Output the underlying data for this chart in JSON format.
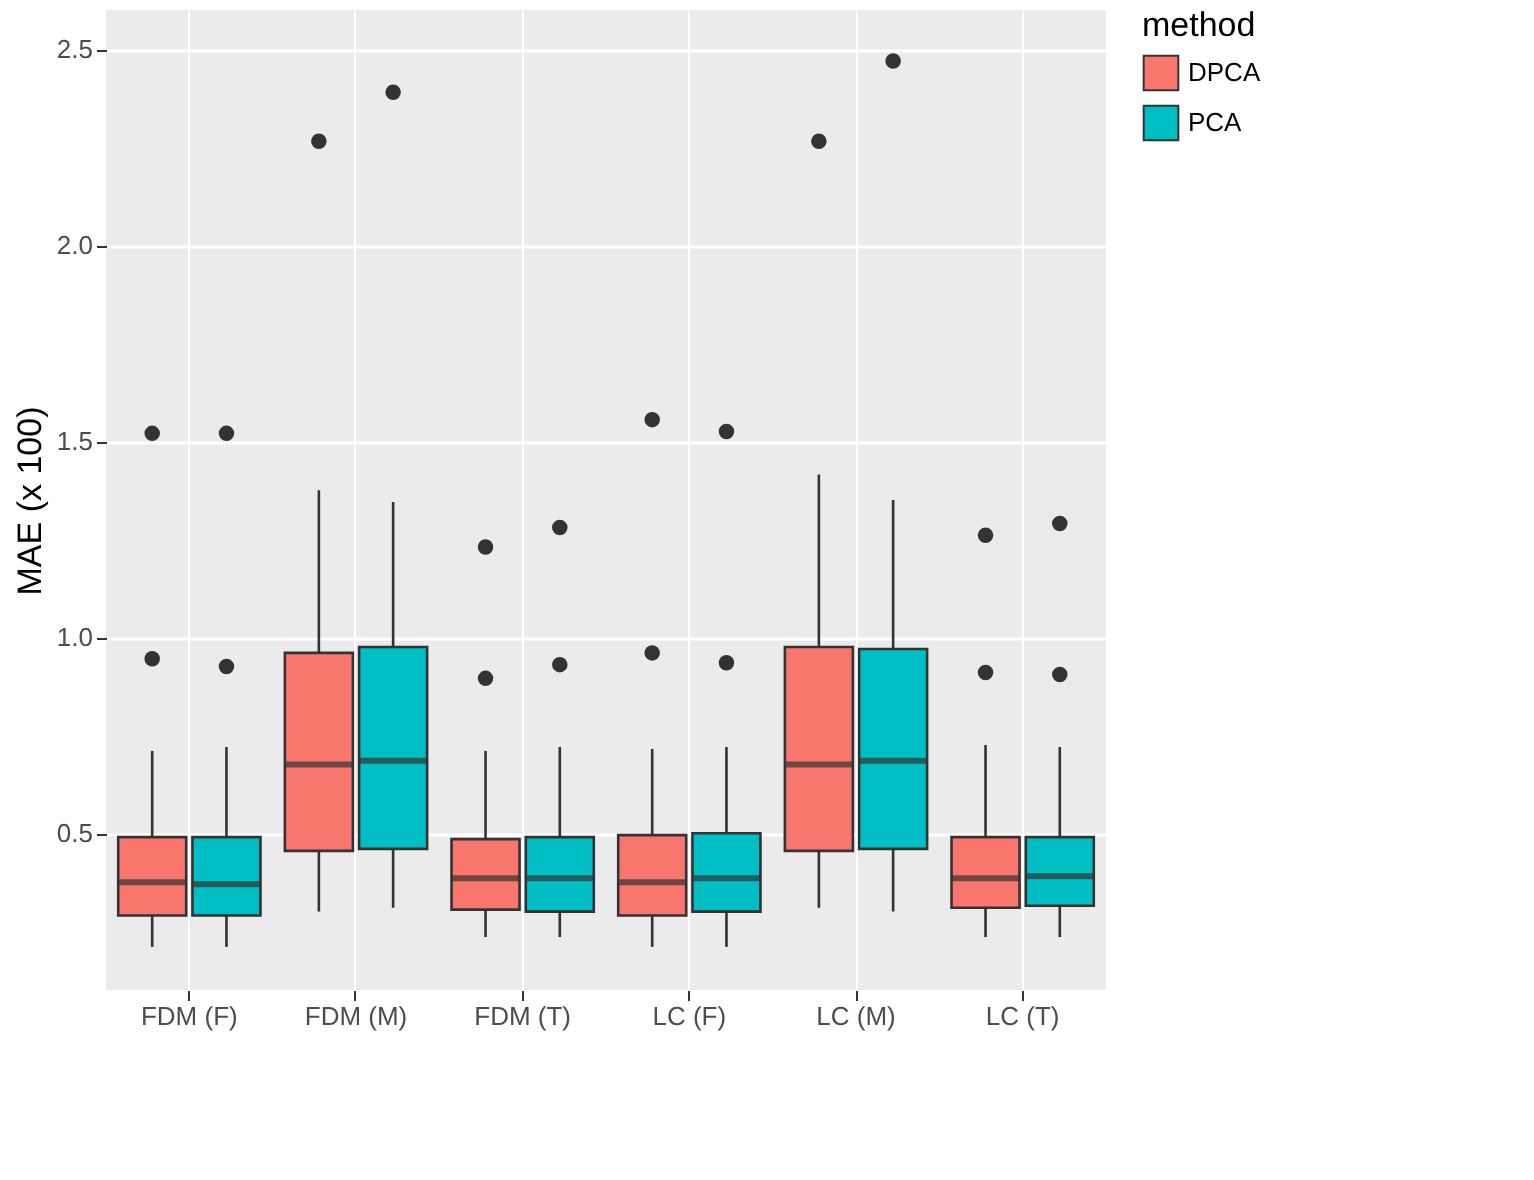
{
  "chart_data": {
    "type": "box",
    "ylabel": "MAE (x 100)",
    "legend_title": "method",
    "legend": "right",
    "grid": true,
    "categories": [
      "FDM (F)",
      "FDM (M)",
      "FDM (T)",
      "LC (F)",
      "LC (M)",
      "LC (T)"
    ],
    "ylim": [
      0.1,
      2.6
    ],
    "yticks": [
      {
        "value": 0.5,
        "label": "0.5"
      },
      {
        "value": 1.0,
        "label": "1.0"
      },
      {
        "value": 1.5,
        "label": "1.5"
      },
      {
        "value": 2.0,
        "label": "2.0"
      },
      {
        "value": 2.5,
        "label": "2.5"
      }
    ],
    "series": [
      {
        "name": "DPCA",
        "color": "#f8766d",
        "boxes": [
          {
            "low": 0.21,
            "q1": 0.29,
            "median": 0.375,
            "q3": 0.49,
            "high": 0.71,
            "outliers": [
              0.945,
              1.52
            ]
          },
          {
            "low": 0.3,
            "q1": 0.455,
            "median": 0.675,
            "q3": 0.96,
            "high": 1.375,
            "outliers": [
              2.265
            ]
          },
          {
            "low": 0.235,
            "q1": 0.305,
            "median": 0.385,
            "q3": 0.485,
            "high": 0.71,
            "outliers": [
              0.895,
              1.23
            ]
          },
          {
            "low": 0.21,
            "q1": 0.29,
            "median": 0.375,
            "q3": 0.495,
            "high": 0.715,
            "outliers": [
              0.96,
              1.555
            ]
          },
          {
            "low": 0.31,
            "q1": 0.455,
            "median": 0.675,
            "q3": 0.975,
            "high": 1.415,
            "outliers": [
              2.265
            ]
          },
          {
            "low": 0.235,
            "q1": 0.31,
            "median": 0.385,
            "q3": 0.49,
            "high": 0.725,
            "outliers": [
              0.91,
              1.26
            ]
          }
        ]
      },
      {
        "name": "PCA",
        "color": "#00bfc4",
        "boxes": [
          {
            "low": 0.21,
            "q1": 0.29,
            "median": 0.37,
            "q3": 0.49,
            "high": 0.72,
            "outliers": [
              0.925,
              1.52
            ]
          },
          {
            "low": 0.31,
            "q1": 0.46,
            "median": 0.685,
            "q3": 0.975,
            "high": 1.345,
            "outliers": [
              2.39
            ]
          },
          {
            "low": 0.235,
            "q1": 0.3,
            "median": 0.385,
            "q3": 0.49,
            "high": 0.72,
            "outliers": [
              0.93,
              1.28
            ]
          },
          {
            "low": 0.21,
            "q1": 0.3,
            "median": 0.385,
            "q3": 0.5,
            "high": 0.72,
            "outliers": [
              0.935,
              1.525
            ]
          },
          {
            "low": 0.3,
            "q1": 0.46,
            "median": 0.685,
            "q3": 0.97,
            "high": 1.35,
            "outliers": [
              2.47
            ]
          },
          {
            "low": 0.235,
            "q1": 0.315,
            "median": 0.39,
            "q3": 0.49,
            "high": 0.72,
            "outliers": [
              0.905,
              1.29
            ]
          }
        ]
      }
    ]
  }
}
